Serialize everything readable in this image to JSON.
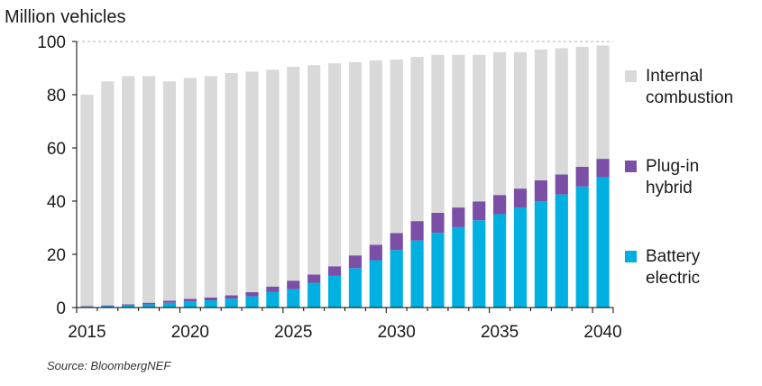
{
  "chart_data": {
    "type": "bar",
    "stacked": true,
    "unit_label": "Million vehicles",
    "ylim": [
      0,
      100
    ],
    "yticks": [
      0,
      20,
      40,
      60,
      80,
      100
    ],
    "x": [
      2015,
      2016,
      2017,
      2018,
      2019,
      2020,
      2021,
      2022,
      2023,
      2024,
      2025,
      2026,
      2027,
      2028,
      2029,
      2030,
      2031,
      2032,
      2033,
      2034,
      2035,
      2036,
      2037,
      2038,
      2039,
      2040
    ],
    "xtick_labels": [
      "2015",
      "2020",
      "2025",
      "2030",
      "2035",
      "2040"
    ],
    "series": [
      {
        "name": "Battery\nelectric",
        "color": "#00b0e0",
        "values": [
          0.3,
          0.5,
          0.8,
          1.2,
          1.8,
          2.3,
          2.7,
          3.3,
          4.2,
          5.8,
          6.9,
          9.3,
          11.9,
          14.8,
          17.8,
          21.6,
          25.2,
          28.1,
          30.2,
          32.8,
          35.1,
          37.5,
          39.9,
          42.5,
          45.5,
          49.0
        ]
      },
      {
        "name": "Plug-in\nhybrid",
        "color": "#7b4fa6",
        "values": [
          0.2,
          0.3,
          0.4,
          0.6,
          0.8,
          1.0,
          1.1,
          1.3,
          1.6,
          2.1,
          3.2,
          3.1,
          3.6,
          4.8,
          5.8,
          6.4,
          7.3,
          7.5,
          7.4,
          7.1,
          7.2,
          7.2,
          7.9,
          7.5,
          7.4,
          6.9
        ]
      },
      {
        "name": "Internal\ncombustion",
        "color": "#d9d9d9",
        "values": [
          79.5,
          84.2,
          85.8,
          85.2,
          82.4,
          83.0,
          83.2,
          83.5,
          82.9,
          81.5,
          80.4,
          78.7,
          76.3,
          72.6,
          69.3,
          65.2,
          61.7,
          59.4,
          57.4,
          55.1,
          53.7,
          51.3,
          49.2,
          47.5,
          45.1,
          42.6
        ]
      }
    ],
    "grid": "dashed line at 100",
    "legend_position": "right"
  },
  "source_note": "Source: BloombergNEF"
}
